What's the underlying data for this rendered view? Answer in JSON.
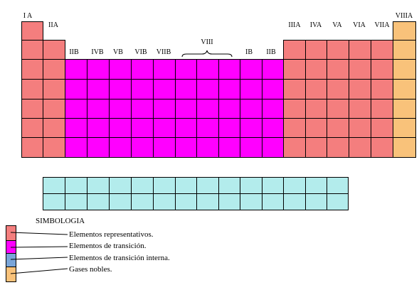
{
  "colors": {
    "representative": "#f47e7e",
    "transition": "#ff00ff",
    "inner_transition": "#b3ecec",
    "noble": "#f9c27a",
    "inner_transition_legend": "#7aa5d8"
  },
  "group_labels": {
    "IA": "I A",
    "IIA": "IIA",
    "IIIB": "IIB",
    "IVB": "IVB",
    "VB": "VB",
    "VIB": "VIB",
    "VIIB": "VIIB",
    "VIII": "VIII",
    "IB": "IB",
    "IIB": "IIB",
    "IIIA": "IIIA",
    "IVA": "IVA",
    "VA": "VA",
    "VIA": "VIA",
    "VIIA": "VIIA",
    "VIIIA": "VIIIA"
  },
  "legend": {
    "title": "SIMBOLOGIA",
    "representative": "Elementos representativos.",
    "transition": "Elementos de transición.",
    "inner_transition": "Elementos de transición interna.",
    "noble": "Gases nobles."
  }
}
